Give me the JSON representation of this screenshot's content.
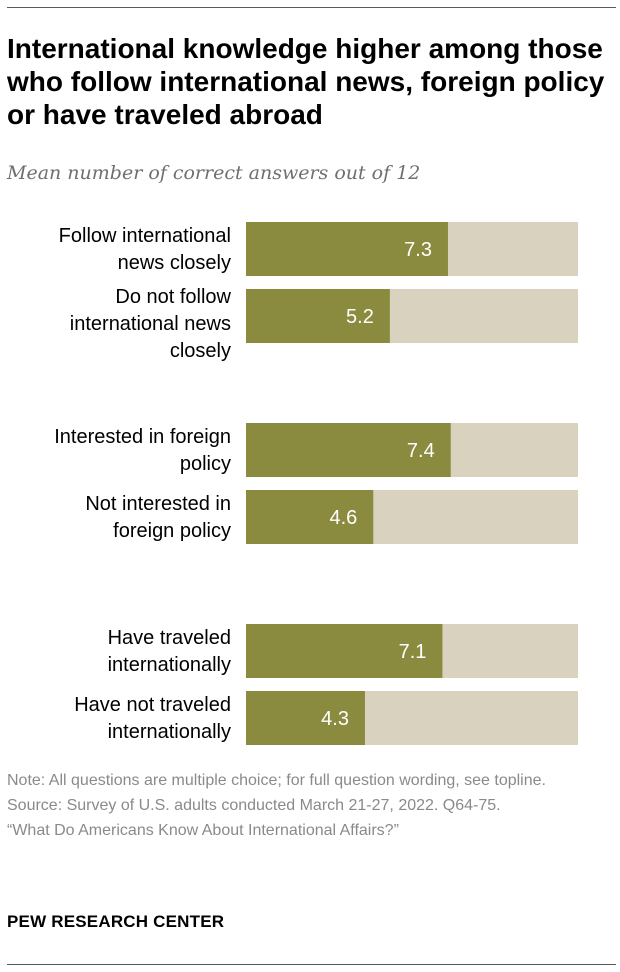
{
  "title": "International knowledge higher among those who follow international news, foreign policy or have traveled abroad",
  "subtitle": "Mean number of correct answers out of 12",
  "colors": {
    "bar": "#8a8b3e",
    "track": "#d8d2bf",
    "value_text": "#ffffff"
  },
  "chart_data": {
    "type": "bar",
    "orientation": "horizontal",
    "max": 12,
    "groups": [
      {
        "bars": [
          {
            "label": [
              "Follow international",
              "news closely"
            ],
            "value": 7.3,
            "display": "7.3"
          },
          {
            "label": [
              "Do not follow",
              "international news",
              "closely"
            ],
            "value": 5.2,
            "display": "5.2"
          }
        ]
      },
      {
        "bars": [
          {
            "label": [
              "Interested in foreign",
              "policy"
            ],
            "value": 7.4,
            "display": "7.4"
          },
          {
            "label": [
              "Not interested in",
              "foreign policy"
            ],
            "value": 4.6,
            "display": "4.6"
          }
        ]
      },
      {
        "bars": [
          {
            "label": [
              "Have traveled",
              "internationally"
            ],
            "value": 7.1,
            "display": "7.1"
          },
          {
            "label": [
              "Have not traveled",
              "internationally"
            ],
            "value": 4.3,
            "display": "4.3"
          }
        ]
      }
    ]
  },
  "notes": {
    "note": "Note: All questions are multiple choice; for full question wording, see topline.",
    "source": "Source: Survey of U.S. adults conducted March 21-27, 2022. Q64-75.",
    "report": "“What Do Americans Know About International Affairs?”"
  },
  "footer": {
    "logo_text": "PEW RESEARCH CENTER"
  }
}
